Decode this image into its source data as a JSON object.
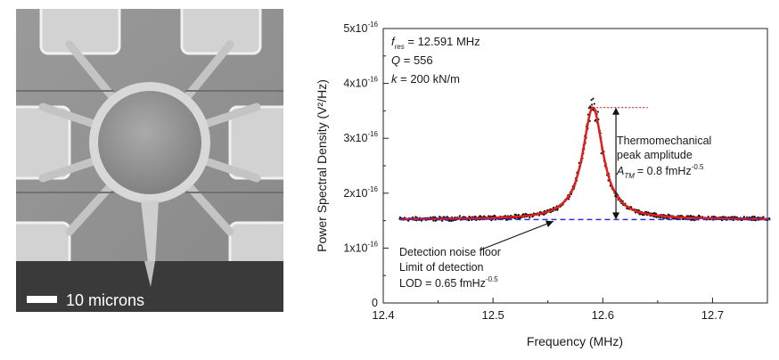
{
  "micrograph": {
    "scale_bar_label": "10 microns"
  },
  "chart_data": {
    "type": "scatter",
    "xlabel": "Frequency (MHz)",
    "ylabel": "Power Spectral Density (V²/Hz)",
    "xlim": [
      12.4,
      12.75
    ],
    "ylim": [
      0,
      5e-16
    ],
    "x_ticks": [
      12.4,
      12.5,
      12.6,
      12.7
    ],
    "y_ticks": [
      0,
      1e-16,
      2e-16,
      3e-16,
      4e-16,
      5e-16
    ],
    "x_tick_labels": [
      "12.4",
      "12.5",
      "12.6",
      "12.7"
    ],
    "y_tick_labels": [
      {
        "base": "0",
        "exp": ""
      },
      {
        "base": "1x10",
        "exp": "-16"
      },
      {
        "base": "2x10",
        "exp": "-16"
      },
      {
        "base": "3x10",
        "exp": "-16"
      },
      {
        "base": "4x10",
        "exp": "-16"
      },
      {
        "base": "5x10",
        "exp": "-16"
      }
    ],
    "grid": false,
    "fit": {
      "f_res_MHz": 12.591,
      "Q": 556,
      "baseline": 1.52e-16,
      "peak": 3.56e-16,
      "x_start": 12.415,
      "x_end": 12.752
    },
    "measured_data": {
      "x_start": 12.415,
      "x_end": 12.752,
      "point_count": 900,
      "noise_amplitude": 4.5e-18,
      "peak_max": 3.95e-16
    },
    "noise_floor_level": 1.52e-16,
    "series": [
      {
        "name": "",
        "color": "#111111"
      },
      {
        "name": "",
        "color": "#e0201b"
      },
      {
        "name": "",
        "color": "#2c2ce0"
      }
    ],
    "params_box": {
      "f_res_label": "f",
      "f_res_sub": "res",
      "f_res_value": " = 12.591 MHz",
      "Q_label": "Q",
      "Q_value": " = 556",
      "k_label": "k",
      "k_value": " = 200 kN/m"
    },
    "annotations": {
      "peak_title_line1": "Thermomechanical",
      "peak_title_line2": "peak amplitude",
      "atm_symbol": "A",
      "atm_sub": "TM",
      "atm_value": "= 0.8 fmHz",
      "atm_exp": "-0.5",
      "noise_line1": "Detection noise floor",
      "noise_line2": "Limit of detection",
      "lod_value": "LOD = 0.65 fmHz",
      "lod_exp": "-0.5"
    }
  }
}
